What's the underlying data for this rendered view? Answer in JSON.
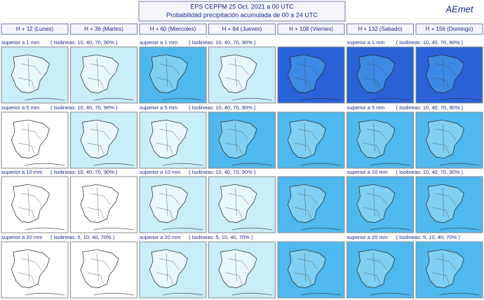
{
  "header": {
    "line1": "EPS   CEPPM    25 Oct. 2021    a    00 UTC",
    "line2": "Probabilidad precipitación acumulada de 00 a 24 UTC",
    "logo": "AEmet"
  },
  "columns": [
    "H + 12   (Lunes)",
    "H + 36   (Martes)",
    "H + 60   (Miercoles)",
    "H + 84   (Jueves)",
    "H + 108   (Viernes)",
    "H + 132   (Sabado)",
    "H + 156   (Domingo)"
  ],
  "rows": [
    {
      "threshold": "superior a 1 mm",
      "isolines": "( Isolineas: 10, 40, 70, 90% )"
    },
    {
      "threshold": "superior a 5 mm",
      "isolines": "( Isolineas: 10, 40, 70, 90% )"
    },
    {
      "threshold": "superior a 10 mm",
      "isolines": "( Isolineas: 10, 40, 70, 90% )"
    },
    {
      "threshold": "superior a 20 mm",
      "isolines": "( Isolineas: 5, 10, 40, 70% )"
    }
  ]
}
